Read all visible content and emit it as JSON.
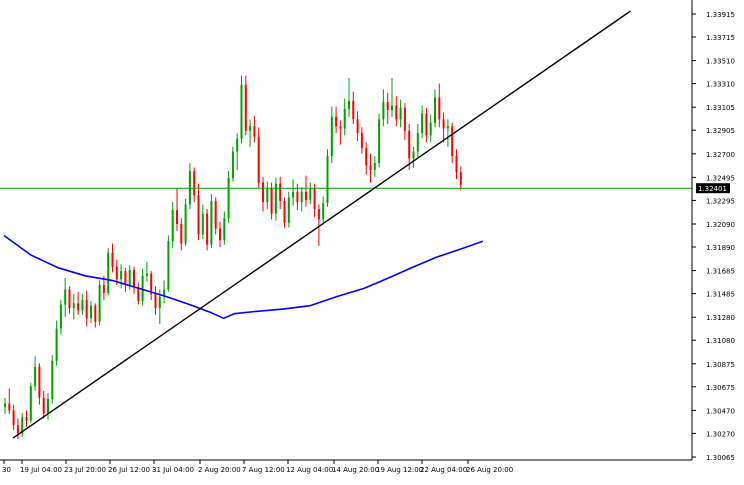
{
  "chart_data": {
    "type": "candlestick",
    "title": "",
    "xlabel": "",
    "ylabel": "",
    "ylim": [
      1.30065,
      1.33915
    ],
    "x_ticks": [
      "30",
      "19 Jul 04:00",
      "23 Jul 20:00",
      "26 Jul 12:00",
      "31 Jul 04:00",
      "2 Aug 20:00",
      "7 Aug 12:00",
      "12 Aug 04:00",
      "14 Aug 20:00",
      "19 Aug 12:00",
      "22 Aug 04:00",
      "26 Aug 20:00"
    ],
    "y_ticks": [
      "1.33915",
      "1.33715",
      "1.33510",
      "1.33310",
      "1.33105",
      "1.32905",
      "1.32700",
      "1.32495",
      "1.32295",
      "1.32090",
      "1.31890",
      "1.31685",
      "1.31485",
      "1.31280",
      "1.31080",
      "1.30875",
      "1.30675",
      "1.30470",
      "1.30270",
      "1.30065"
    ],
    "current_price": "1.32401",
    "bull_color": "#00a000",
    "bear_color": "#ff0000",
    "moving_average": {
      "color": "#0000ff",
      "values": [
        [
          0,
          1.3199
        ],
        [
          15,
          1.3182
        ],
        [
          30,
          1.3171
        ],
        [
          45,
          1.3164
        ],
        [
          60,
          1.316
        ],
        [
          75,
          1.3153
        ],
        [
          90,
          1.3146
        ],
        [
          105,
          1.3138
        ],
        [
          115,
          1.3132
        ],
        [
          122,
          1.3127
        ],
        [
          128,
          1.3131
        ],
        [
          140,
          1.3133
        ],
        [
          155,
          1.3135
        ],
        [
          170,
          1.3138
        ],
        [
          185,
          1.3146
        ],
        [
          200,
          1.3153
        ],
        [
          215,
          1.3163
        ],
        [
          225,
          1.317
        ],
        [
          240,
          1.318
        ],
        [
          255,
          1.3188
        ],
        [
          266,
          1.3194
        ]
      ]
    },
    "trendline": {
      "color": "#000000",
      "from": [
        5,
        1.3023
      ],
      "to": [
        348,
        1.3394
      ]
    },
    "candles": [
      [
        1.305,
        1.3058,
        1.3044,
        1.3053
      ],
      [
        1.3053,
        1.3066,
        1.3044,
        1.3047
      ],
      [
        1.3047,
        1.3052,
        1.303,
        1.3034
      ],
      [
        1.3034,
        1.304,
        1.3022,
        1.3027
      ],
      [
        1.3027,
        1.3045,
        1.3024,
        1.3041
      ],
      [
        1.3041,
        1.3047,
        1.3033,
        1.3038
      ],
      [
        1.3038,
        1.3071,
        1.3036,
        1.3068
      ],
      [
        1.3068,
        1.3094,
        1.3064,
        1.3085
      ],
      [
        1.3085,
        1.3088,
        1.3052,
        1.3058
      ],
      [
        1.3058,
        1.3064,
        1.304,
        1.3044
      ],
      [
        1.3044,
        1.3062,
        1.3039,
        1.3057
      ],
      [
        1.3057,
        1.3095,
        1.3053,
        1.309
      ],
      [
        1.309,
        1.3125,
        1.3086,
        1.3118
      ],
      [
        1.3118,
        1.3143,
        1.3113,
        1.3139
      ],
      [
        1.3139,
        1.3162,
        1.3128,
        1.3152
      ],
      [
        1.3152,
        1.3155,
        1.3131,
        1.3136
      ],
      [
        1.3136,
        1.3148,
        1.3126,
        1.314
      ],
      [
        1.314,
        1.315,
        1.313,
        1.3134
      ],
      [
        1.3134,
        1.3148,
        1.313,
        1.3143
      ],
      [
        1.3143,
        1.3151,
        1.312,
        1.3127
      ],
      [
        1.3127,
        1.3142,
        1.3123,
        1.3138
      ],
      [
        1.3138,
        1.314,
        1.3119,
        1.3124
      ],
      [
        1.3124,
        1.316,
        1.3121,
        1.3156
      ],
      [
        1.3156,
        1.3164,
        1.3143,
        1.3149
      ],
      [
        1.3149,
        1.3188,
        1.3147,
        1.3184
      ],
      [
        1.3184,
        1.3192,
        1.3167,
        1.3172
      ],
      [
        1.3172,
        1.3178,
        1.3156,
        1.3161
      ],
      [
        1.3161,
        1.3174,
        1.3153,
        1.3168
      ],
      [
        1.3168,
        1.3171,
        1.315,
        1.3156
      ],
      [
        1.3156,
        1.3173,
        1.3152,
        1.3169
      ],
      [
        1.3169,
        1.3172,
        1.3148,
        1.3154
      ],
      [
        1.3154,
        1.3158,
        1.3139,
        1.3142
      ],
      [
        1.3142,
        1.317,
        1.3138,
        1.3164
      ],
      [
        1.3164,
        1.3176,
        1.3159,
        1.3166
      ],
      [
        1.3166,
        1.3168,
        1.3143,
        1.3148
      ],
      [
        1.3148,
        1.3155,
        1.313,
        1.3136
      ],
      [
        1.3136,
        1.3152,
        1.3122,
        1.3146
      ],
      [
        1.3146,
        1.316,
        1.314,
        1.3152
      ],
      [
        1.3152,
        1.3199,
        1.315,
        1.3194
      ],
      [
        1.3194,
        1.3228,
        1.3188,
        1.3221
      ],
      [
        1.3221,
        1.324,
        1.3203,
        1.3209
      ],
      [
        1.3209,
        1.3214,
        1.3186,
        1.3192
      ],
      [
        1.3192,
        1.3231,
        1.319,
        1.3226
      ],
      [
        1.3226,
        1.3262,
        1.3222,
        1.3255
      ],
      [
        1.3255,
        1.3258,
        1.3228,
        1.3234
      ],
      [
        1.3234,
        1.3244,
        1.3195,
        1.32
      ],
      [
        1.32,
        1.3226,
        1.3196,
        1.3218
      ],
      [
        1.3218,
        1.3222,
        1.3186,
        1.3191
      ],
      [
        1.3191,
        1.3235,
        1.3188,
        1.3229
      ],
      [
        1.3229,
        1.3232,
        1.32,
        1.3205
      ],
      [
        1.3205,
        1.3211,
        1.3189,
        1.3195
      ],
      [
        1.3195,
        1.322,
        1.3191,
        1.3214
      ],
      [
        1.3214,
        1.3255,
        1.321,
        1.3249
      ],
      [
        1.3249,
        1.3276,
        1.3246,
        1.3272
      ],
      [
        1.3272,
        1.3288,
        1.3256,
        1.3283
      ],
      [
        1.3283,
        1.3338,
        1.3279,
        1.333
      ],
      [
        1.333,
        1.3338,
        1.3286,
        1.329
      ],
      [
        1.329,
        1.33,
        1.3276,
        1.3294
      ],
      [
        1.3294,
        1.3303,
        1.328,
        1.3285
      ],
      [
        1.3285,
        1.3293,
        1.324,
        1.3245
      ],
      [
        1.3245,
        1.325,
        1.322,
        1.3228
      ],
      [
        1.3228,
        1.3246,
        1.3222,
        1.324
      ],
      [
        1.324,
        1.3245,
        1.3213,
        1.3218
      ],
      [
        1.3218,
        1.3249,
        1.3212,
        1.3244
      ],
      [
        1.3244,
        1.325,
        1.3222,
        1.3229
      ],
      [
        1.3229,
        1.3232,
        1.3206,
        1.321
      ],
      [
        1.321,
        1.3237,
        1.3206,
        1.3232
      ],
      [
        1.3232,
        1.3248,
        1.3225,
        1.3237
      ],
      [
        1.3237,
        1.3244,
        1.3221,
        1.3228
      ],
      [
        1.3228,
        1.3241,
        1.322,
        1.3237
      ],
      [
        1.3237,
        1.3251,
        1.3224,
        1.323
      ],
      [
        1.323,
        1.3245,
        1.3226,
        1.324
      ],
      [
        1.324,
        1.3244,
        1.3215,
        1.3222
      ],
      [
        1.3222,
        1.3226,
        1.319,
        1.3213
      ],
      [
        1.3213,
        1.3233,
        1.3209,
        1.3227
      ],
      [
        1.3227,
        1.3274,
        1.3224,
        1.3268
      ],
      [
        1.3268,
        1.3311,
        1.3262,
        1.3302
      ],
      [
        1.3302,
        1.3311,
        1.3288,
        1.3294
      ],
      [
        1.3294,
        1.3299,
        1.3278,
        1.3292
      ],
      [
        1.3292,
        1.3318,
        1.3286,
        1.3309
      ],
      [
        1.3309,
        1.3336,
        1.3302,
        1.3316
      ],
      [
        1.3316,
        1.3324,
        1.3296,
        1.33
      ],
      [
        1.33,
        1.3307,
        1.3281,
        1.3288
      ],
      [
        1.3288,
        1.3293,
        1.327,
        1.3275
      ],
      [
        1.3275,
        1.328,
        1.3252,
        1.326
      ],
      [
        1.326,
        1.327,
        1.3245,
        1.3256
      ],
      [
        1.3256,
        1.3268,
        1.325,
        1.3262
      ],
      [
        1.3262,
        1.3305,
        1.3258,
        1.33
      ],
      [
        1.33,
        1.3326,
        1.3294,
        1.3315
      ],
      [
        1.3315,
        1.3323,
        1.3296,
        1.3308
      ],
      [
        1.3308,
        1.3336,
        1.3302,
        1.3312
      ],
      [
        1.3312,
        1.332,
        1.3294,
        1.33
      ],
      [
        1.33,
        1.3317,
        1.3293,
        1.331
      ],
      [
        1.331,
        1.3314,
        1.3282,
        1.329
      ],
      [
        1.329,
        1.3296,
        1.3256,
        1.3266
      ],
      [
        1.3266,
        1.3276,
        1.3258,
        1.3272
      ],
      [
        1.3272,
        1.3296,
        1.3267,
        1.3288
      ],
      [
        1.3288,
        1.3312,
        1.3284,
        1.3305
      ],
      [
        1.3305,
        1.331,
        1.328,
        1.3286
      ],
      [
        1.3286,
        1.3304,
        1.328,
        1.3297
      ],
      [
        1.3297,
        1.3326,
        1.3293,
        1.3319
      ],
      [
        1.3319,
        1.3331,
        1.3293,
        1.33
      ],
      [
        1.33,
        1.3306,
        1.328,
        1.3292
      ],
      [
        1.3292,
        1.33,
        1.3276,
        1.3294
      ],
      [
        1.3294,
        1.3297,
        1.3262,
        1.3268
      ],
      [
        1.3268,
        1.3274,
        1.3248,
        1.3254
      ],
      [
        1.3254,
        1.3259,
        1.3238,
        1.3243
      ]
    ]
  }
}
